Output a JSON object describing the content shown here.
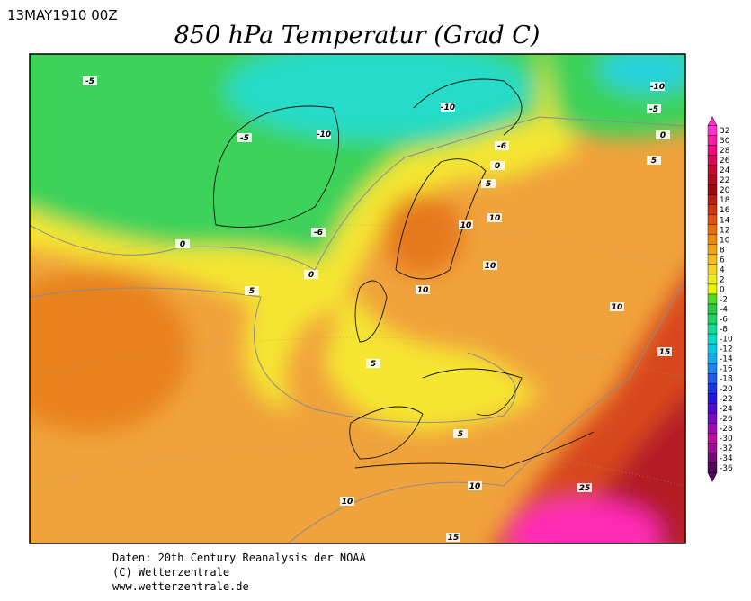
{
  "header": {
    "timestamp": "13MAY1910 00Z",
    "title": "850 hPa Temperatur (Grad C)"
  },
  "map": {
    "contour_labels": [
      "-5",
      "-5",
      "-10",
      "-10",
      "-6",
      "-10",
      "-5",
      "0",
      "5",
      "0",
      "5",
      "0",
      "-6",
      "0",
      "5",
      "10",
      "10",
      "10",
      "10",
      "10",
      "15",
      "5",
      "5",
      "10",
      "10",
      "25",
      "15"
    ]
  },
  "colorbar": {
    "labels": [
      32,
      30,
      28,
      26,
      24,
      22,
      20,
      18,
      16,
      14,
      12,
      10,
      8,
      6,
      4,
      2,
      0,
      -2,
      -4,
      -6,
      -8,
      -10,
      -12,
      -14,
      -16,
      -18,
      -20,
      -22,
      -24,
      -26,
      -28,
      -30,
      -32,
      -34,
      -36
    ],
    "colors": [
      "#ff33cc",
      "#ff1aa3",
      "#f00a80",
      "#dc0a55",
      "#c80a32",
      "#b40a1e",
      "#a00a0a",
      "#b91e0a",
      "#d2320a",
      "#e1500a",
      "#eb6e0a",
      "#f08c0a",
      "#f5a514",
      "#f5be1e",
      "#f5d228",
      "#f0eb1e",
      "#e6f50a",
      "#50dc28",
      "#28c846",
      "#1ed264",
      "#14dc96",
      "#0adcc8",
      "#0ac8e6",
      "#14aaf0",
      "#1e82f0",
      "#1e5aeb",
      "#1e32e6",
      "#2814dc",
      "#500ad2",
      "#780ac8",
      "#a00ab4",
      "#be0aa0",
      "#a00a96",
      "#780a78",
      "#500a5a"
    ]
  },
  "footer": {
    "lines": [
      "Daten: 20th Century Reanalysis der NOAA",
      "(C) Wetterzentrale",
      "www.wetterzentrale.de"
    ]
  }
}
